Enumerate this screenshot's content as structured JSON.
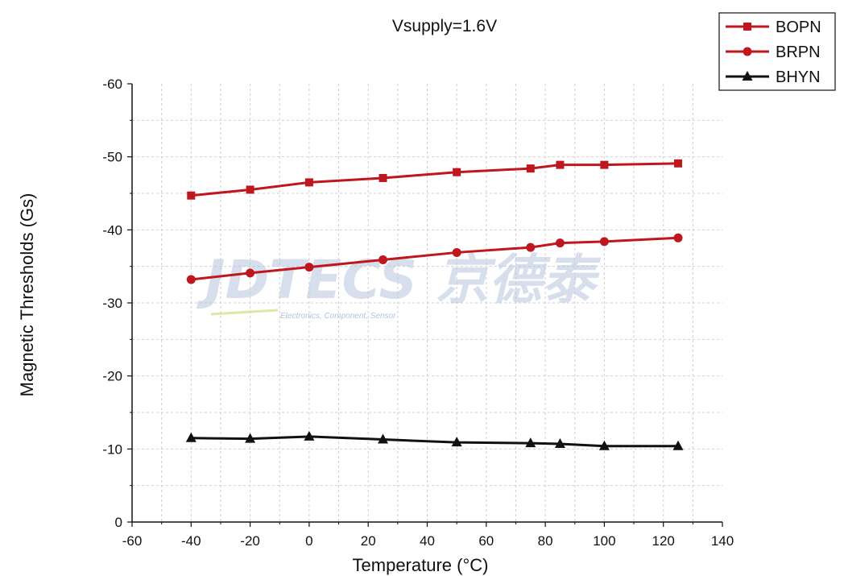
{
  "chart_data": {
    "type": "line",
    "title": "Vsupply=1.6V",
    "xlabel": "Temperature (°C)",
    "ylabel": "Magnetic Thresholds (Gs)",
    "xlim": [
      -60,
      140
    ],
    "ylim": [
      -60,
      0
    ],
    "x_ticks": [
      "-60",
      "-40",
      "-20",
      "0",
      "20",
      "40",
      "60",
      "80",
      "100",
      "120",
      "140"
    ],
    "y_ticks": [
      "0",
      "-10",
      "-20",
      "-30",
      "-40",
      "-50",
      "-60"
    ],
    "x_tick_values": [
      -60,
      -40,
      -20,
      0,
      20,
      40,
      60,
      80,
      100,
      120,
      140
    ],
    "y_tick_values": [
      0,
      -10,
      -20,
      -30,
      -40,
      -50,
      -60
    ],
    "grid": true,
    "legend_position": "top-right",
    "x": [
      -40,
      -20,
      0,
      25,
      50,
      75,
      85,
      100,
      125
    ],
    "series": [
      {
        "name": "BOPN",
        "color": "#c0161d",
        "marker": "square",
        "values": [
          -44.7,
          -45.5,
          -46.5,
          -47.1,
          -47.9,
          -48.4,
          -48.9,
          -48.9,
          -49.1
        ]
      },
      {
        "name": "BRPN",
        "color": "#c0161d",
        "marker": "circle",
        "values": [
          -33.2,
          -34.1,
          -34.9,
          -35.9,
          -36.9,
          -37.6,
          -38.2,
          -38.4,
          -38.9
        ]
      },
      {
        "name": "BHYN",
        "color": "#111111",
        "marker": "triangle",
        "values": [
          -11.5,
          -11.4,
          -11.7,
          -11.3,
          -10.9,
          -10.8,
          -10.7,
          -10.4,
          -10.4
        ]
      }
    ]
  },
  "watermark": {
    "brand": "JDTECS 京德泰",
    "tagline": "Electronics, Component, Sensor"
  }
}
